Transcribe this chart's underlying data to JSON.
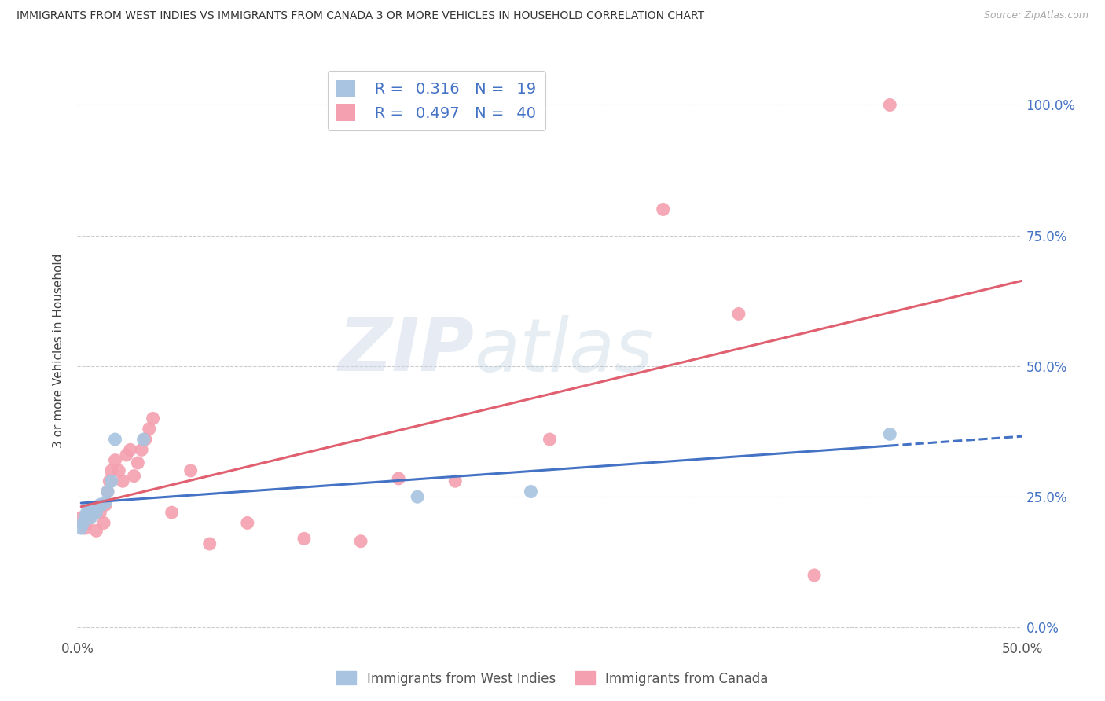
{
  "title": "IMMIGRANTS FROM WEST INDIES VS IMMIGRANTS FROM CANADA 3 OR MORE VEHICLES IN HOUSEHOLD CORRELATION CHART",
  "source": "Source: ZipAtlas.com",
  "ylabel": "3 or more Vehicles in Household",
  "xlim": [
    0.0,
    0.5
  ],
  "ylim": [
    -0.02,
    1.08
  ],
  "ytick_labels_right": [
    "0.0%",
    "25.0%",
    "50.0%",
    "75.0%",
    "100.0%"
  ],
  "ytick_values": [
    0.0,
    0.25,
    0.5,
    0.75,
    1.0
  ],
  "xtick_labels": [
    "0.0%",
    "",
    "",
    "",
    "",
    "50.0%"
  ],
  "xtick_values": [
    0.0,
    0.1,
    0.2,
    0.3,
    0.4,
    0.5
  ],
  "west_indies_x": [
    0.002,
    0.003,
    0.004,
    0.005,
    0.006,
    0.007,
    0.008,
    0.009,
    0.01,
    0.012,
    0.013,
    0.015,
    0.016,
    0.018,
    0.02,
    0.035,
    0.18,
    0.24,
    0.43
  ],
  "west_indies_y": [
    0.19,
    0.2,
    0.21,
    0.22,
    0.23,
    0.21,
    0.22,
    0.23,
    0.22,
    0.235,
    0.235,
    0.24,
    0.26,
    0.28,
    0.36,
    0.36,
    0.25,
    0.26,
    0.37
  ],
  "canada_x": [
    0.002,
    0.004,
    0.005,
    0.006,
    0.007,
    0.008,
    0.009,
    0.01,
    0.011,
    0.012,
    0.013,
    0.014,
    0.015,
    0.016,
    0.017,
    0.018,
    0.02,
    0.022,
    0.024,
    0.026,
    0.028,
    0.03,
    0.032,
    0.034,
    0.036,
    0.038,
    0.04,
    0.05,
    0.06,
    0.07,
    0.09,
    0.12,
    0.15,
    0.17,
    0.2,
    0.25,
    0.31,
    0.35,
    0.39,
    0.43
  ],
  "canada_y": [
    0.21,
    0.19,
    0.2,
    0.21,
    0.22,
    0.215,
    0.22,
    0.185,
    0.23,
    0.22,
    0.235,
    0.2,
    0.235,
    0.26,
    0.28,
    0.3,
    0.32,
    0.3,
    0.28,
    0.33,
    0.34,
    0.29,
    0.315,
    0.34,
    0.36,
    0.38,
    0.4,
    0.22,
    0.3,
    0.16,
    0.2,
    0.17,
    0.165,
    0.285,
    0.28,
    0.36,
    0.8,
    0.6,
    0.1,
    1.0
  ],
  "west_indies_R": 0.316,
  "west_indies_N": 19,
  "canada_R": 0.497,
  "canada_N": 40,
  "blue_line_color": "#4472c4",
  "pink_line_color": "#e06070",
  "blue_scatter_color": "#a8c4e0",
  "pink_scatter_color": "#f4a0b0",
  "watermark_zip": "ZIP",
  "watermark_atlas": "atlas",
  "background_color": "#ffffff",
  "grid_color": "#cccccc"
}
